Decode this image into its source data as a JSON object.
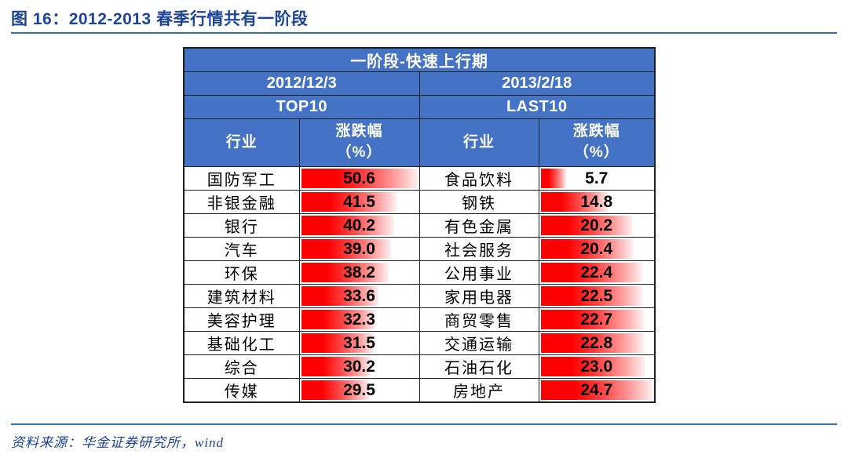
{
  "figure": {
    "title": "图 16：2012-2013 春季行情共有一阶段",
    "source": "资料来源：华金证券研究所，wind"
  },
  "table": {
    "phase_title": "一阶段-快速上行期",
    "headers": {
      "industry": "行业",
      "change_line1": "涨跌幅",
      "change_line2": "（%）"
    }
  },
  "colors": {
    "header_bg": "#4472C4",
    "header_text": "#FFFFFF",
    "bar_red": "#FF0000",
    "title_blue": "#1C449B",
    "rule_blue": "#2E75B6",
    "table_border": "#1F1F1F",
    "value_text": "#000000"
  },
  "chart_data": {
    "type": "table",
    "title": "一阶段-快速上行期",
    "bar_style": "red gradient data bars behind values, length proportional to value, scaled to each group's maximum",
    "groups": [
      {
        "date": "2012/12/3",
        "label": "TOP10",
        "columns": [
          "行业",
          "涨跌幅（%）"
        ],
        "max_value": 50.6,
        "rows": [
          {
            "industry": "国防军工",
            "change_pct": 50.6
          },
          {
            "industry": "非银金融",
            "change_pct": 41.5
          },
          {
            "industry": "银行",
            "change_pct": 40.2
          },
          {
            "industry": "汽车",
            "change_pct": 39.0
          },
          {
            "industry": "环保",
            "change_pct": 38.2
          },
          {
            "industry": "建筑材料",
            "change_pct": 33.6
          },
          {
            "industry": "美容护理",
            "change_pct": 32.3
          },
          {
            "industry": "基础化工",
            "change_pct": 31.5
          },
          {
            "industry": "综合",
            "change_pct": 30.2
          },
          {
            "industry": "传媒",
            "change_pct": 29.5
          }
        ]
      },
      {
        "date": "2013/2/18",
        "label": "LAST10",
        "columns": [
          "行业",
          "涨跌幅（%）"
        ],
        "max_value": 24.7,
        "rows": [
          {
            "industry": "食品饮料",
            "change_pct": 5.7
          },
          {
            "industry": "钢铁",
            "change_pct": 14.8
          },
          {
            "industry": "有色金属",
            "change_pct": 20.2
          },
          {
            "industry": "社会服务",
            "change_pct": 20.4
          },
          {
            "industry": "公用事业",
            "change_pct": 22.4
          },
          {
            "industry": "家用电器",
            "change_pct": 22.5
          },
          {
            "industry": "商贸零售",
            "change_pct": 22.7
          },
          {
            "industry": "交通运输",
            "change_pct": 22.8
          },
          {
            "industry": "石油石化",
            "change_pct": 23.0
          },
          {
            "industry": "房地产",
            "change_pct": 24.7
          }
        ]
      }
    ]
  }
}
